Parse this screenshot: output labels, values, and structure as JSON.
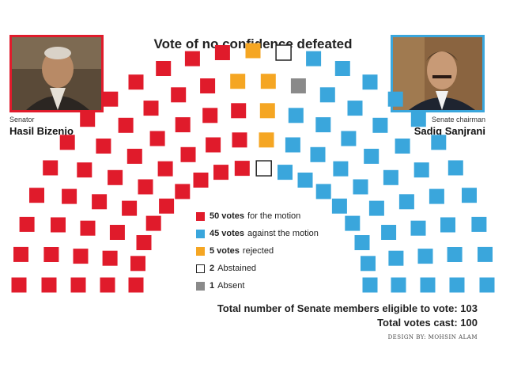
{
  "header": {
    "title": "Vote of no confidence defeated"
  },
  "people": [
    {
      "role": "Senator",
      "name": "Hasil Bizenjo",
      "frame_color": "#e01b2b",
      "icon": "portrait-photo"
    },
    {
      "role": "Senate chairman",
      "name": "Sadiq Sanjrani",
      "frame_color": "#3aa6dc",
      "icon": "portrait-photo"
    }
  ],
  "chart_data": {
    "type": "parliament",
    "title": "Vote of no confidence defeated",
    "total_seats": 103,
    "series": [
      {
        "key": "for",
        "count": 50,
        "count_label": "50 votes",
        "label": "for the motion",
        "color": "#e01b2b",
        "style": "filled"
      },
      {
        "key": "rejected",
        "count": 5,
        "count_label": "5 votes",
        "label": "rejected",
        "color": "#f5a623",
        "style": "filled"
      },
      {
        "key": "abstained",
        "count": 2,
        "count_label": "2",
        "label": "Abstained",
        "color": "#222222",
        "style": "outline"
      },
      {
        "key": "absent",
        "count": 1,
        "count_label": "1",
        "label": "Absent",
        "color": "#8a8a8a",
        "style": "filled"
      },
      {
        "key": "against",
        "count": 45,
        "count_label": "45 votes",
        "label": "against the motion",
        "color": "#3aa6dc",
        "style": "filled"
      }
    ],
    "legend_placement": "center"
  },
  "footer": {
    "total_eligible": "Total number of Senate members eligible to vote: 103",
    "total_cast": "Total votes cast: 100",
    "credit": "DESIGN BY: MOHSIN ALAM"
  }
}
